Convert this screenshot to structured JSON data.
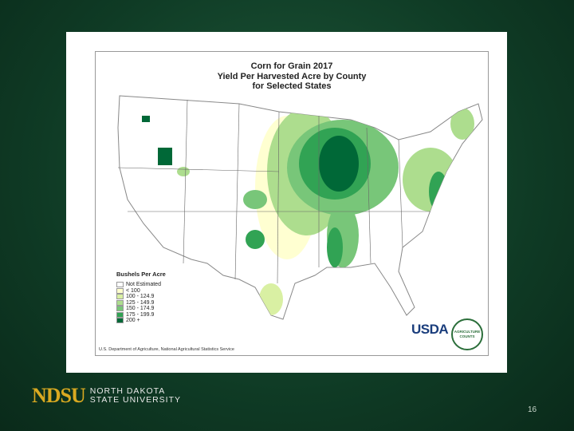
{
  "slide": {
    "map": {
      "title": [
        "Corn for Grain 2017",
        "Yield Per Harvested Acre by County",
        "for Selected States"
      ],
      "legend": {
        "title": "Bushels Per Acre",
        "items": [
          {
            "label": "Not Estimated",
            "color": "#ffffff"
          },
          {
            "label": "< 100",
            "color": "#ffffcc"
          },
          {
            "label": "100 - 124.9",
            "color": "#d9f0a3"
          },
          {
            "label": "125 - 149.9",
            "color": "#addd8e"
          },
          {
            "label": "150 - 174.9",
            "color": "#78c679"
          },
          {
            "label": "175 - 199.9",
            "color": "#31a354"
          },
          {
            "label": "200 +",
            "color": "#006837"
          }
        ]
      },
      "source": "U.S. Department of Agriculture, National Agricultural Statistics Service",
      "logo": {
        "name": "USDA",
        "ring_text": "AGRICULTURE COUNTS"
      }
    },
    "footer": {
      "brand": "NDSU",
      "university": [
        "NORTH DAKOTA",
        "STATE UNIVERSITY"
      ]
    },
    "page_number": "16"
  }
}
